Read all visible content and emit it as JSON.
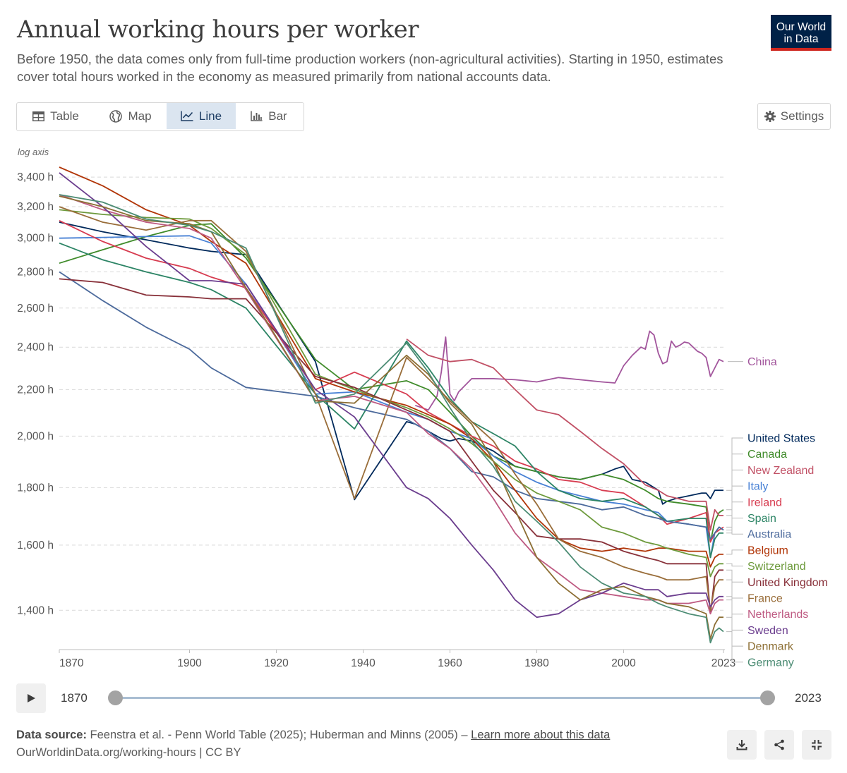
{
  "header": {
    "title": "Annual working hours per worker",
    "subtitle": "Before 1950, the data comes only from full-time production workers (non-agricultural activities). Starting in 1950, estimates cover total hours worked in the economy as measured primarily from national accounts data.",
    "logo_line1": "Our World",
    "logo_line2": "in Data",
    "logo_color": "#002147",
    "logo_accent": "#ce261e"
  },
  "tabs": [
    {
      "label": "Table",
      "icon": "table-icon",
      "active": false
    },
    {
      "label": "Map",
      "icon": "globe-icon",
      "active": false
    },
    {
      "label": "Line",
      "icon": "line-chart-icon",
      "active": true
    },
    {
      "label": "Bar",
      "icon": "bar-chart-icon",
      "active": false
    }
  ],
  "settings": {
    "label": "Settings",
    "icon": "gear-icon"
  },
  "timeline": {
    "start_label": "1870",
    "end_label": "2023",
    "start": 1870,
    "end": 2023
  },
  "footer": {
    "source_label": "Data source:",
    "source_text": " Feenstra et al. - Penn World Table (2025); Huberman and Minns (2005) – ",
    "learn_more": "Learn more about this data",
    "url": "OurWorldinData.org/working-hours | CC BY"
  },
  "chart_data": {
    "type": "line",
    "title": "Annual working hours per worker",
    "axis_note": "log axis",
    "y_scale": "log",
    "ylim": [
      1320,
      3480
    ],
    "xlim": [
      1870,
      2023
    ],
    "y_ticks": [
      {
        "value": 1400,
        "label": "1,400 h"
      },
      {
        "value": 1600,
        "label": "1,600 h"
      },
      {
        "value": 1800,
        "label": "1,800 h"
      },
      {
        "value": 2000,
        "label": "2,000 h"
      },
      {
        "value": 2200,
        "label": "2,200 h"
      },
      {
        "value": 2400,
        "label": "2,400 h"
      },
      {
        "value": 2600,
        "label": "2,600 h"
      },
      {
        "value": 2800,
        "label": "2,800 h"
      },
      {
        "value": 3000,
        "label": "3,000 h"
      },
      {
        "value": 3200,
        "label": "3,200 h"
      },
      {
        "value": 3400,
        "label": "3,400 h"
      }
    ],
    "x_ticks": [
      {
        "value": 1870,
        "label": "1870"
      },
      {
        "value": 1900,
        "label": "1900"
      },
      {
        "value": 1920,
        "label": "1920"
      },
      {
        "value": 1940,
        "label": "1940"
      },
      {
        "value": 1960,
        "label": "1960"
      },
      {
        "value": 1980,
        "label": "1980"
      },
      {
        "value": 2000,
        "label": "2000"
      },
      {
        "value": 2023,
        "label": "2023"
      }
    ],
    "grid": "horizontal dashed",
    "legend": "right, labels at line ends",
    "series": [
      {
        "name": "China",
        "color": "#a2559c",
        "x": [
          1952,
          1955,
          1957,
          1958,
          1959,
          1960,
          1961,
          1962,
          1965,
          1970,
          1975,
          1980,
          1985,
          1990,
          1995,
          1998,
          2000,
          2002,
          2004,
          2005,
          2006,
          2007,
          2008,
          2009,
          2010,
          2011,
          2012,
          2013,
          2014,
          2015,
          2016,
          2017,
          2018,
          2019,
          2020,
          2021,
          2022,
          2023
        ],
        "y": [
          2130,
          2110,
          2170,
          2280,
          2450,
          2180,
          2150,
          2190,
          2250,
          2250,
          2245,
          2235,
          2255,
          2245,
          2235,
          2230,
          2310,
          2360,
          2400,
          2390,
          2480,
          2460,
          2370,
          2320,
          2330,
          2430,
          2400,
          2410,
          2425,
          2420,
          2400,
          2380,
          2370,
          2350,
          2260,
          2300,
          2340,
          2330
        ]
      },
      {
        "name": "United States",
        "color": "#00295b",
        "x": [
          1870,
          1880,
          1890,
          1900,
          1905,
          1913,
          1929,
          1938,
          1950,
          1952,
          1955,
          1958,
          1960,
          1962,
          1965,
          1970,
          1975,
          1980,
          1985,
          1990,
          1995,
          1998,
          2000,
          2002,
          2005,
          2008,
          2009,
          2010,
          2012,
          2015,
          2018,
          2019,
          2020,
          2021,
          2022,
          2023
        ],
        "y": [
          3100,
          3040,
          2990,
          2940,
          2920,
          2900,
          2330,
          1756,
          2060,
          2050,
          2020,
          1990,
          1980,
          1990,
          1980,
          1940,
          1880,
          1860,
          1840,
          1830,
          1850,
          1870,
          1880,
          1830,
          1820,
          1790,
          1740,
          1750,
          1760,
          1770,
          1780,
          1780,
          1760,
          1790,
          1790,
          1790
        ]
      },
      {
        "name": "Canada",
        "color": "#3f8b2a",
        "x": [
          1870,
          1880,
          1890,
          1900,
          1905,
          1913,
          1929,
          1938,
          1950,
          1955,
          1960,
          1965,
          1970,
          1975,
          1980,
          1985,
          1990,
          1995,
          2000,
          2005,
          2008,
          2010,
          2015,
          2019,
          2020,
          2021,
          2022,
          2023
        ],
        "y": [
          2850,
          2930,
          3010,
          3080,
          3090,
          2880,
          2340,
          2200,
          2240,
          2200,
          2100,
          2000,
          1920,
          1880,
          1860,
          1840,
          1830,
          1850,
          1830,
          1790,
          1760,
          1750,
          1740,
          1730,
          1610,
          1680,
          1710,
          1720
        ]
      },
      {
        "name": "New Zealand",
        "color": "#c15065",
        "x": [
          1950,
          1955,
          1960,
          1965,
          1970,
          1975,
          1980,
          1985,
          1990,
          1995,
          2000,
          2005,
          2008,
          2010,
          2015,
          2019,
          2020,
          2021,
          2022,
          2023
        ],
        "y": [
          2440,
          2360,
          2330,
          2340,
          2300,
          2200,
          2110,
          2090,
          2020,
          1950,
          1890,
          1810,
          1790,
          1770,
          1750,
          1750,
          1650,
          1720,
          1700,
          1700
        ]
      },
      {
        "name": "Italy",
        "color": "#4881d5",
        "x": [
          1870,
          1880,
          1890,
          1900,
          1905,
          1913,
          1929,
          1938,
          1950,
          1955,
          1960,
          1965,
          1970,
          1975,
          1980,
          1985,
          1990,
          1995,
          2000,
          2005,
          2008,
          2010,
          2015,
          2019,
          2020,
          2021,
          2022,
          2023
        ],
        "y": [
          3000,
          3005,
          3010,
          3015,
          2970,
          2730,
          2180,
          2190,
          2100,
          2070,
          2020,
          1990,
          1920,
          1860,
          1820,
          1790,
          1770,
          1750,
          1740,
          1720,
          1710,
          1680,
          1670,
          1660,
          1560,
          1640,
          1660,
          1650
        ]
      },
      {
        "name": "Ireland",
        "color": "#d73c50",
        "x": [
          1870,
          1880,
          1890,
          1900,
          1905,
          1913,
          1929,
          1938,
          1950,
          1955,
          1960,
          1965,
          1970,
          1975,
          1980,
          1985,
          1990,
          1995,
          2000,
          2005,
          2008,
          2010,
          2015,
          2019,
          2020,
          2021,
          2022,
          2023
        ],
        "y": [
          3110,
          2980,
          2880,
          2820,
          2770,
          2710,
          2200,
          2280,
          2180,
          2100,
          2050,
          2000,
          1960,
          1900,
          1870,
          1830,
          1820,
          1790,
          1780,
          1730,
          1700,
          1670,
          1690,
          1710,
          1610,
          1640,
          1650,
          1660
        ]
      },
      {
        "name": "Spain",
        "color": "#2c8465",
        "x": [
          1870,
          1880,
          1890,
          1900,
          1905,
          1913,
          1929,
          1938,
          1950,
          1955,
          1960,
          1965,
          1970,
          1975,
          1980,
          1985,
          1990,
          1995,
          2000,
          2005,
          2008,
          2010,
          2015,
          2019,
          2020,
          2021,
          2022,
          2023
        ],
        "y": [
          2970,
          2870,
          2800,
          2740,
          2700,
          2600,
          2180,
          2030,
          2430,
          2300,
          2160,
          2060,
          2010,
          1960,
          1860,
          1790,
          1760,
          1750,
          1760,
          1730,
          1700,
          1680,
          1690,
          1690,
          1560,
          1620,
          1640,
          1640
        ]
      },
      {
        "name": "Australia",
        "color": "#4c6a9c",
        "x": [
          1870,
          1880,
          1890,
          1900,
          1905,
          1913,
          1929,
          1938,
          1950,
          1955,
          1960,
          1965,
          1970,
          1975,
          1980,
          1985,
          1990,
          1995,
          2000,
          2005,
          2008,
          2010,
          2015,
          2019,
          2020,
          2021,
          2022,
          2023
        ],
        "y": [
          2800,
          2640,
          2500,
          2390,
          2300,
          2210,
          2170,
          2120,
          2070,
          2020,
          1950,
          1860,
          1840,
          1790,
          1760,
          1750,
          1740,
          1720,
          1730,
          1700,
          1690,
          1680,
          1670,
          1660,
          1620,
          1640,
          1660,
          1650
        ]
      },
      {
        "name": "Belgium",
        "color": "#b13507",
        "x": [
          1870,
          1880,
          1890,
          1900,
          1905,
          1913,
          1929,
          1938,
          1950,
          1955,
          1960,
          1965,
          1970,
          1975,
          1980,
          1985,
          1990,
          1995,
          2000,
          2005,
          2008,
          2010,
          2015,
          2019,
          2020,
          2021,
          2022,
          2023
        ],
        "y": [
          3470,
          3340,
          3180,
          3080,
          2980,
          2850,
          2250,
          2190,
          2130,
          2090,
          2050,
          1990,
          1900,
          1790,
          1690,
          1620,
          1590,
          1580,
          1590,
          1580,
          1590,
          1590,
          1580,
          1580,
          1530,
          1560,
          1570,
          1570
        ]
      },
      {
        "name": "Switzerland",
        "color": "#6d9a3c",
        "x": [
          1870,
          1880,
          1890,
          1900,
          1905,
          1913,
          1929,
          1938,
          1950,
          1955,
          1960,
          1965,
          1970,
          1975,
          1980,
          1985,
          1990,
          1995,
          2000,
          2005,
          2008,
          2010,
          2015,
          2019,
          2020,
          2021,
          2022,
          2023
        ],
        "y": [
          3180,
          3150,
          3130,
          3120,
          3060,
          2900,
          2270,
          2200,
          2120,
          2080,
          2030,
          1970,
          1900,
          1830,
          1780,
          1750,
          1720,
          1660,
          1640,
          1610,
          1600,
          1590,
          1570,
          1560,
          1500,
          1530,
          1540,
          1540
        ]
      },
      {
        "name": "United Kingdom",
        "color": "#883039",
        "x": [
          1870,
          1880,
          1890,
          1900,
          1905,
          1913,
          1929,
          1938,
          1950,
          1955,
          1960,
          1965,
          1970,
          1975,
          1980,
          1985,
          1990,
          1995,
          2000,
          2005,
          2008,
          2010,
          2015,
          2019,
          2020,
          2021,
          2022,
          2023
        ],
        "y": [
          2760,
          2740,
          2670,
          2660,
          2650,
          2650,
          2260,
          2210,
          2110,
          2070,
          2020,
          1900,
          1790,
          1710,
          1630,
          1620,
          1620,
          1610,
          1580,
          1560,
          1550,
          1540,
          1540,
          1540,
          1390,
          1500,
          1520,
          1520
        ]
      },
      {
        "name": "France",
        "color": "#996d39",
        "x": [
          1870,
          1880,
          1890,
          1900,
          1905,
          1913,
          1929,
          1938,
          1950,
          1955,
          1960,
          1965,
          1970,
          1975,
          1980,
          1985,
          1990,
          1995,
          2000,
          2005,
          2008,
          2010,
          2015,
          2019,
          2020,
          2021,
          2022,
          2023
        ],
        "y": [
          3200,
          3100,
          3050,
          3110,
          3110,
          2920,
          2180,
          1760,
          2350,
          2250,
          2150,
          2060,
          1980,
          1850,
          1740,
          1620,
          1580,
          1560,
          1530,
          1510,
          1500,
          1490,
          1490,
          1500,
          1400,
          1470,
          1490,
          1490
        ]
      },
      {
        "name": "Netherlands",
        "color": "#be5a82",
        "x": [
          1870,
          1880,
          1890,
          1900,
          1905,
          1913,
          1929,
          1938,
          1950,
          1955,
          1960,
          1965,
          1970,
          1975,
          1980,
          1985,
          1990,
          1995,
          2000,
          2005,
          2008,
          2010,
          2015,
          2019,
          2020,
          2021,
          2022,
          2023
        ],
        "y": [
          3280,
          3180,
          3100,
          3060,
          3000,
          2700,
          2150,
          2170,
          2100,
          2010,
          1950,
          1870,
          1760,
          1640,
          1560,
          1510,
          1460,
          1450,
          1440,
          1430,
          1430,
          1420,
          1420,
          1430,
          1390,
          1420,
          1430,
          1430
        ]
      },
      {
        "name": "Sweden",
        "color": "#6b3d8e",
        "x": [
          1870,
          1880,
          1890,
          1900,
          1905,
          1913,
          1929,
          1938,
          1950,
          1955,
          1960,
          1965,
          1970,
          1975,
          1980,
          1985,
          1990,
          1995,
          2000,
          2005,
          2008,
          2010,
          2015,
          2019,
          2020,
          2021,
          2022,
          2023
        ],
        "y": [
          3430,
          3200,
          2950,
          2750,
          2750,
          2730,
          2200,
          2080,
          1800,
          1760,
          1690,
          1600,
          1520,
          1430,
          1380,
          1390,
          1430,
          1450,
          1480,
          1460,
          1460,
          1440,
          1450,
          1450,
          1410,
          1430,
          1440,
          1440
        ]
      },
      {
        "name": "Denmark",
        "color": "#8c6e33",
        "x": [
          1870,
          1880,
          1890,
          1900,
          1905,
          1913,
          1929,
          1938,
          1950,
          1955,
          1960,
          1965,
          1970,
          1975,
          1980,
          1985,
          1990,
          1995,
          2000,
          2005,
          2008,
          2010,
          2015,
          2019,
          2020,
          2021,
          2022,
          2023
        ],
        "y": [
          3270,
          3200,
          3110,
          3090,
          3040,
          2710,
          2150,
          2140,
          2360,
          2270,
          2140,
          2050,
          1900,
          1720,
          1560,
          1480,
          1430,
          1460,
          1470,
          1440,
          1430,
          1420,
          1410,
          1390,
          1320,
          1360,
          1380,
          1380
        ]
      },
      {
        "name": "Germany",
        "color": "#4c8c74",
        "x": [
          1870,
          1880,
          1890,
          1900,
          1905,
          1913,
          1929,
          1938,
          1950,
          1955,
          1960,
          1965,
          1970,
          1975,
          1980,
          1985,
          1990,
          1995,
          2000,
          2005,
          2008,
          2010,
          2015,
          2019,
          2020,
          2021,
          2022,
          2023
        ],
        "y": [
          3280,
          3230,
          3120,
          3080,
          3040,
          2940,
          2140,
          2180,
          2420,
          2280,
          2120,
          1980,
          1880,
          1750,
          1680,
          1610,
          1530,
          1480,
          1450,
          1440,
          1420,
          1410,
          1390,
          1380,
          1310,
          1340,
          1350,
          1340
        ]
      }
    ]
  }
}
